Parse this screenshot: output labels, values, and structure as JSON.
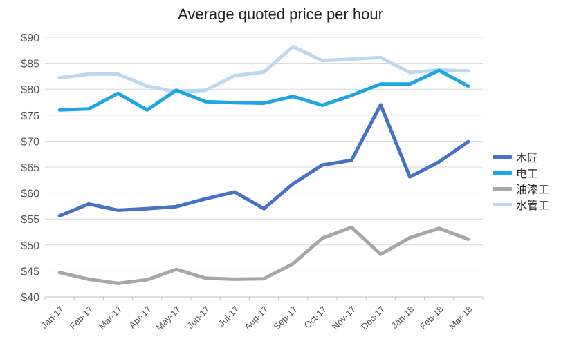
{
  "chart_data": {
    "type": "line",
    "title": "Average quoted price per hour",
    "xlabel": "",
    "ylabel": "",
    "categories": [
      "Jan-17",
      "Feb-17",
      "Mar-17",
      "Apr-17",
      "May-17",
      "Jun-17",
      "Jul-17",
      "Aug-17",
      "Sep-17",
      "Oct-17",
      "Nov-17",
      "Dec-17",
      "Jan-18",
      "Feb-18",
      "Mar-18"
    ],
    "ylim": [
      40,
      90
    ],
    "yticks": [
      40,
      45,
      50,
      55,
      60,
      65,
      70,
      75,
      80,
      85,
      90
    ],
    "ytick_prefix": "$",
    "grid": true,
    "legend_position": "right",
    "series": [
      {
        "name": "木匠",
        "color": "#4472c4",
        "values": [
          55.6,
          57.9,
          56.7,
          57.0,
          57.4,
          58.9,
          60.2,
          57.0,
          61.8,
          65.4,
          66.3,
          77.0,
          63.1,
          66.0,
          69.9
        ]
      },
      {
        "name": "电工",
        "color": "#1ea5e3",
        "values": [
          76.0,
          76.2,
          79.2,
          76.0,
          79.8,
          77.6,
          77.4,
          77.3,
          78.6,
          76.9,
          78.8,
          81.0,
          81.0,
          83.6,
          80.6
        ]
      },
      {
        "name": "油漆工",
        "color": "#a6a6a6",
        "values": [
          44.7,
          43.4,
          42.6,
          43.3,
          45.3,
          43.6,
          43.4,
          43.5,
          46.4,
          51.3,
          53.4,
          48.2,
          51.4,
          53.2,
          51.1
        ]
      },
      {
        "name": "水管工",
        "color": "#bdd7ee",
        "values": [
          82.2,
          82.9,
          82.9,
          80.6,
          79.5,
          79.8,
          82.6,
          83.3,
          88.2,
          85.5,
          85.8,
          86.1,
          83.2,
          83.7,
          83.5
        ]
      }
    ]
  }
}
